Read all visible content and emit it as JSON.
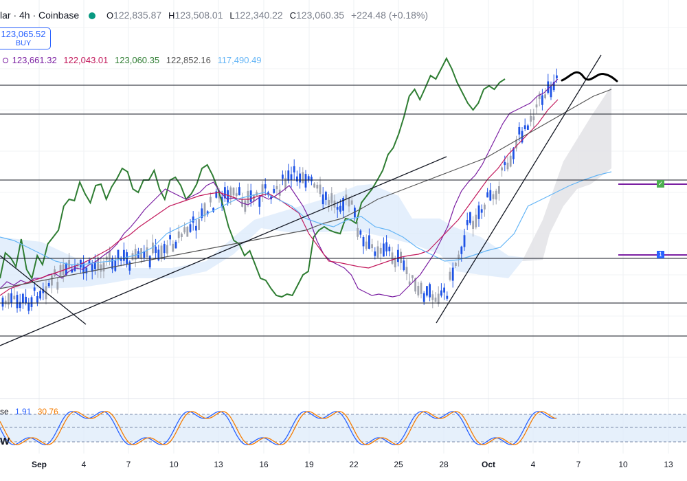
{
  "header": {
    "symbol_fragment": "lar · 4h · Coinbase",
    "ohlc": [
      {
        "label": "O",
        "value": "122,835.87"
      },
      {
        "label": "H",
        "value": "123,508.01"
      },
      {
        "label": "L",
        "value": "122,340.22"
      },
      {
        "label": "C",
        "value": "123,060.35"
      }
    ],
    "change": "+224.48 (+0.18%)",
    "status_color": "#089981"
  },
  "buy_button": {
    "price": "123,065.52",
    "label": "BUY"
  },
  "ichimoku_values": [
    {
      "value": "123,661.32",
      "color": "#7b1fa2"
    },
    {
      "value": "122,043.01",
      "color": "#c2185b"
    },
    {
      "value": "123,060.35",
      "color": "#2e7d32"
    },
    {
      "value": "122,852.16",
      "color": "#555555"
    },
    {
      "value": "117,490.49",
      "color": "#64b5f6"
    }
  ],
  "oscillator": {
    "label_fragment": "se",
    "value1": "1.91",
    "value2": "30.76",
    "color1": "#2962ff",
    "color2": "#f57c00",
    "level_lines": [
      80,
      50,
      20
    ]
  },
  "pane_label": "W",
  "x_ticks": [
    {
      "label": "Sep",
      "bold": true
    },
    {
      "label": "4",
      "bold": false
    },
    {
      "label": "7",
      "bold": false
    },
    {
      "label": "10",
      "bold": false
    },
    {
      "label": "13",
      "bold": false
    },
    {
      "label": "16",
      "bold": false
    },
    {
      "label": "19",
      "bold": false
    },
    {
      "label": "22",
      "bold": false
    },
    {
      "label": "25",
      "bold": false
    },
    {
      "label": "28",
      "bold": false
    },
    {
      "label": "Oct",
      "bold": true
    },
    {
      "label": "4",
      "bold": false
    },
    {
      "label": "7",
      "bold": false
    },
    {
      "label": "10",
      "bold": false
    },
    {
      "label": "13",
      "bold": false
    }
  ],
  "alerts": [
    {
      "icon": "check-icon",
      "text": "✓",
      "color": "#4caf50"
    },
    {
      "icon": "number-icon",
      "text": "1",
      "color": "#2962ff"
    }
  ],
  "chart_data": {
    "type": "line",
    "series": [
      {
        "color": "#2e7d32",
        "values": [
          405,
          368,
          375,
          388,
          348,
          392,
          405,
          372,
          385,
          355,
          345,
          335,
          300,
          290,
          292,
          265,
          282,
          295,
          270,
          268,
          290,
          272,
          260,
          245,
          250,
          275,
          280,
          262,
          262,
          248,
          275,
          290,
          262,
          258,
          270,
          290,
          282,
          268,
          245,
          240,
          255,
          275,
          300,
          330,
          350,
          355,
          372,
          365,
          385,
          405,
          408,
          420,
          430,
          432,
          428,
          430,
          415,
          400,
          395,
          345,
          335,
          330,
          335,
          338,
          340,
          318,
          320,
          325,
          295,
          285,
          275,
          262,
          248,
          225,
          215,
          195,
          170,
          140,
          130,
          145,
          128,
          110,
          115,
          100,
          85,
          100,
          120,
          135,
          150,
          160,
          150,
          130,
          125,
          130,
          120,
          115
        ]
      },
      {
        "color": "#7b1fa2",
        "values": [
          420,
          410,
          415,
          408,
          412,
          405,
          405,
          400,
          398,
          405,
          395,
          390,
          392,
          385,
          380,
          372,
          365,
          355,
          340,
          330,
          318,
          305,
          295,
          285,
          275,
          280,
          285,
          290,
          285,
          280,
          270,
          265,
          280,
          290,
          288,
          295,
          298,
          292,
          285,
          290,
          285,
          278,
          270,
          285,
          300,
          320,
          350,
          370,
          380,
          385,
          390,
          400,
          420,
          425,
          430,
          428,
          430,
          432,
          430,
          420,
          410,
          400,
          385,
          370,
          350,
          330,
          300,
          278,
          265,
          255,
          240,
          220,
          200,
          180,
          165,
          160,
          155,
          150,
          140,
          135,
          125,
          115
        ]
      },
      {
        "color": "#c2185b",
        "values": [
          430,
          420,
          415,
          410,
          405,
          400,
          395,
          390,
          385,
          378,
          370,
          362,
          350,
          342,
          330,
          320,
          310,
          300,
          295,
          290,
          285,
          282,
          280,
          285,
          290,
          290,
          285,
          282,
          290,
          300,
          310,
          340,
          360,
          380,
          382,
          385,
          388,
          390,
          385,
          380,
          375,
          372,
          370,
          365,
          350,
          335,
          320,
          300,
          280,
          260,
          245,
          225,
          210,
          195,
          180,
          160,
          145
        ]
      },
      {
        "color": "#555555",
        "values": [
          420,
          415,
          410,
          405,
          400,
          395,
          390,
          385,
          380,
          375,
          370,
          365,
          360,
          355,
          350,
          345,
          340,
          335,
          325,
          318,
          305,
          290,
          280,
          270,
          260,
          250,
          240,
          230,
          215,
          200,
          185,
          170,
          155,
          140,
          130
        ]
      },
      {
        "color": "#64b5f6",
        "values": [
          345,
          350,
          360,
          370,
          380,
          385,
          385,
          382,
          380,
          375,
          370,
          360,
          340,
          330,
          320,
          310,
          300,
          290,
          285,
          280,
          290,
          300,
          318,
          325,
          330,
          320,
          315,
          330,
          335,
          345,
          360,
          370,
          380,
          378,
          372,
          365,
          360,
          340,
          300,
          290,
          280,
          270,
          262,
          255,
          250
        ]
      },
      {
        "color": "#2962ff",
        "values": [
          120,
          123,
          121,
          122.8,
          123.06
        ]
      }
    ],
    "horizontal_levels": [
      124,
      166,
      262,
      376,
      441,
      489
    ]
  }
}
